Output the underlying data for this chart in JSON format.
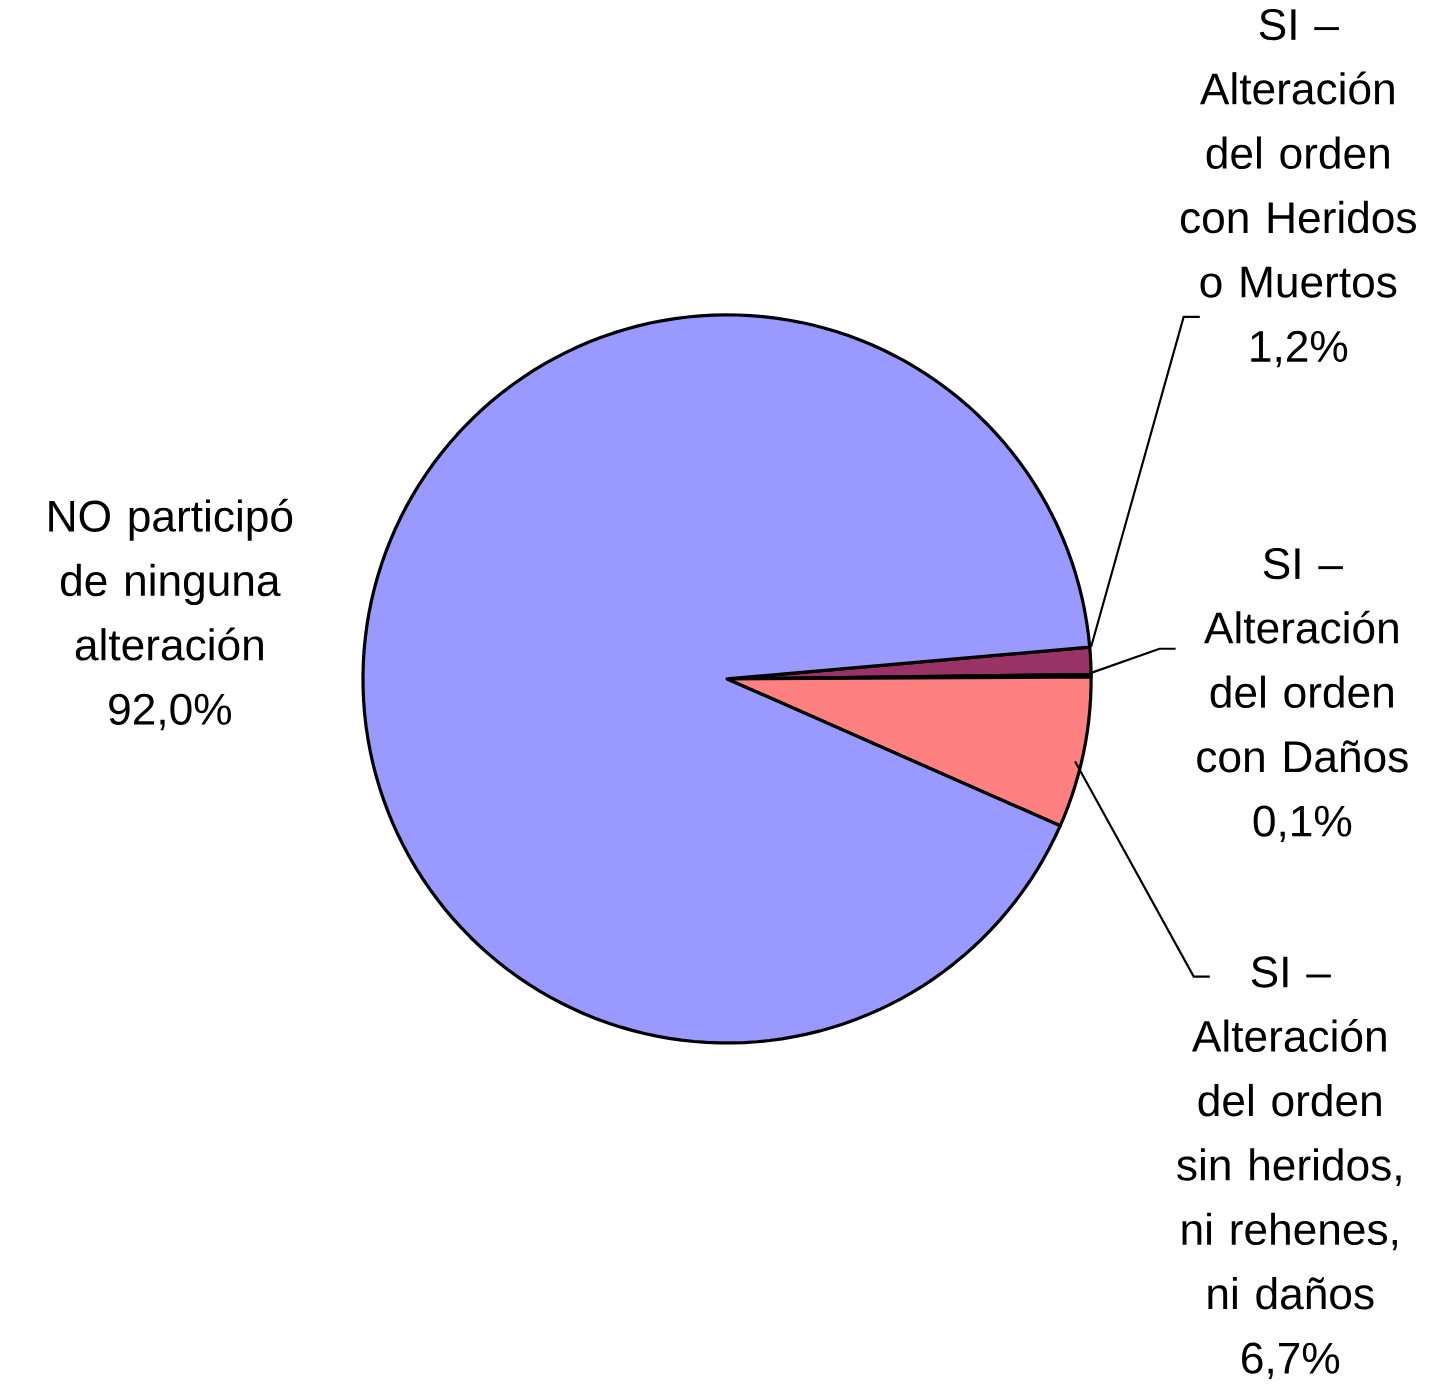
{
  "chart_data": {
    "type": "pie",
    "categories": [
      "SI – Alteración del orden con Heridos o Muertos",
      "SI – Alteración del orden con Daños",
      "SI – Alteración del orden sin heridos, ni rehenes, ni daños",
      "NO participó de ninguna alteración"
    ],
    "values": [
      1.2,
      0.1,
      6.7,
      92.0
    ],
    "value_labels": [
      "1,2%",
      "0,1%",
      "6,7%",
      "92,0%"
    ],
    "colors": [
      "#993366",
      "#ffffcc",
      "#ff8080",
      "#9999ff"
    ]
  }
}
